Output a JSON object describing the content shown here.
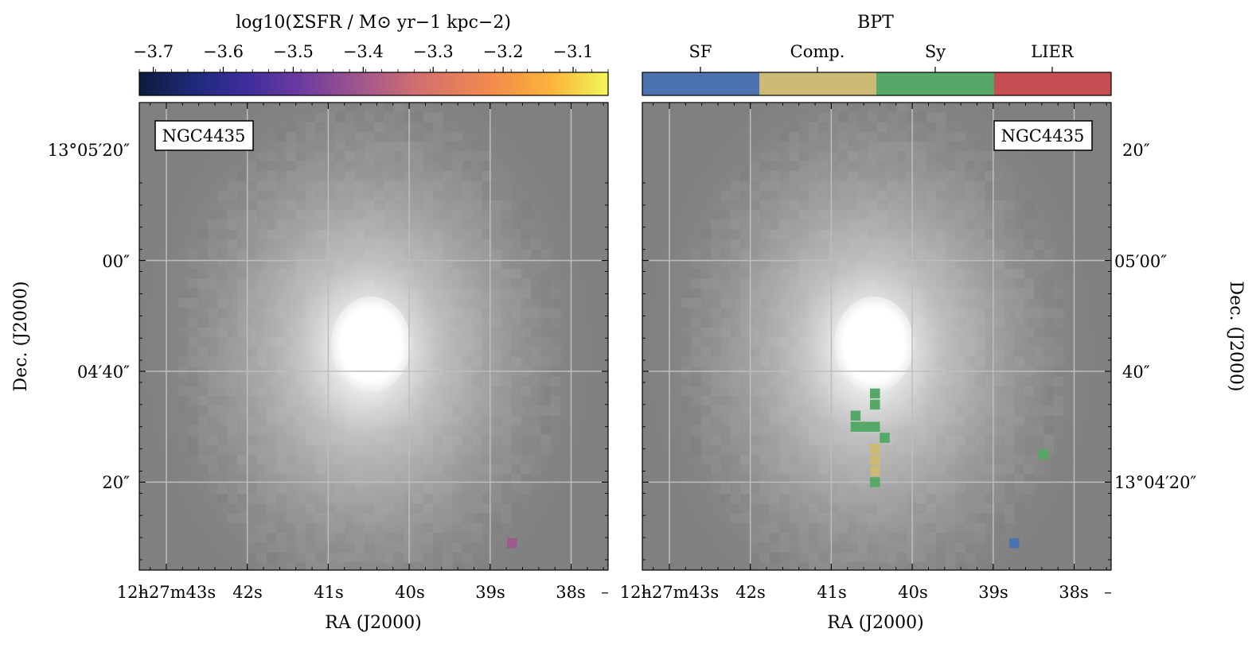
{
  "chart_data": [
    {
      "type": "heatmap",
      "panel": "left",
      "title": "log10(ΣSFR / M⊙ yr−1 kpc−2)",
      "label_box": "NGC4435",
      "xlabel": "RA (J2000)",
      "ylabel": "Dec. (J2000)",
      "grid": true,
      "colormap": "plasma",
      "colorbar": {
        "range": [
          -3.72,
          -3.05
        ],
        "ticks": [
          -3.7,
          -3.6,
          -3.5,
          -3.4,
          -3.3,
          -3.2,
          -3.1
        ],
        "tick_labels": [
          "−3.7",
          "−3.6",
          "−3.5",
          "−3.4",
          "−3.3",
          "−3.2",
          "−3.1"
        ]
      },
      "x_ticks": [
        "12h27m43s",
        "42s",
        "41s",
        "40s",
        "39s",
        "38s"
      ],
      "y_ticks": [
        "13°05′20″",
        "00″",
        "04′40″",
        "20″"
      ],
      "overlay_pixels": [
        {
          "ra_s": 38.73,
          "dec_arcsec": 29,
          "value": -3.45
        }
      ]
    },
    {
      "type": "heatmap",
      "panel": "right",
      "title": "BPT",
      "label_box": "NGC4435",
      "xlabel": "RA (J2000)",
      "ylabel": "Dec. (J2000)",
      "grid": true,
      "classes": [
        "SF",
        "Comp.",
        "Sy",
        "LIER"
      ],
      "class_colors": [
        "#4c72b0",
        "#ccb974",
        "#55a868",
        "#c44e52"
      ],
      "x_ticks": [
        "12h27m43s",
        "42s",
        "41s",
        "40s",
        "39s",
        "38s"
      ],
      "y_ticks": [
        "20″",
        "05′00″",
        "40″",
        "13°04′20″"
      ],
      "overlay_pixels": [
        {
          "ra_s": 40.7,
          "dec_arcsec": 52,
          "class": "Sy"
        },
        {
          "ra_s": 40.7,
          "dec_arcsec": 50,
          "class": "Sy"
        },
        {
          "ra_s": 40.58,
          "dec_arcsec": 50,
          "class": "Sy"
        },
        {
          "ra_s": 40.46,
          "dec_arcsec": 50,
          "class": "Sy"
        },
        {
          "ra_s": 40.46,
          "dec_arcsec": 54,
          "class": "Sy"
        },
        {
          "ra_s": 40.46,
          "dec_arcsec": 56,
          "class": "Sy"
        },
        {
          "ra_s": 40.34,
          "dec_arcsec": 48,
          "class": "Sy"
        },
        {
          "ra_s": 40.46,
          "dec_arcsec": 40,
          "class": "Sy"
        },
        {
          "ra_s": 40.46,
          "dec_arcsec": 42,
          "class": "Comp."
        },
        {
          "ra_s": 40.46,
          "dec_arcsec": 44,
          "class": "Comp."
        },
        {
          "ra_s": 40.46,
          "dec_arcsec": 46,
          "class": "Comp."
        },
        {
          "ra_s": 38.38,
          "dec_arcsec": 45,
          "class": "Sy"
        },
        {
          "ra_s": 38.74,
          "dec_arcsec": 29,
          "class": "SF"
        }
      ]
    }
  ]
}
